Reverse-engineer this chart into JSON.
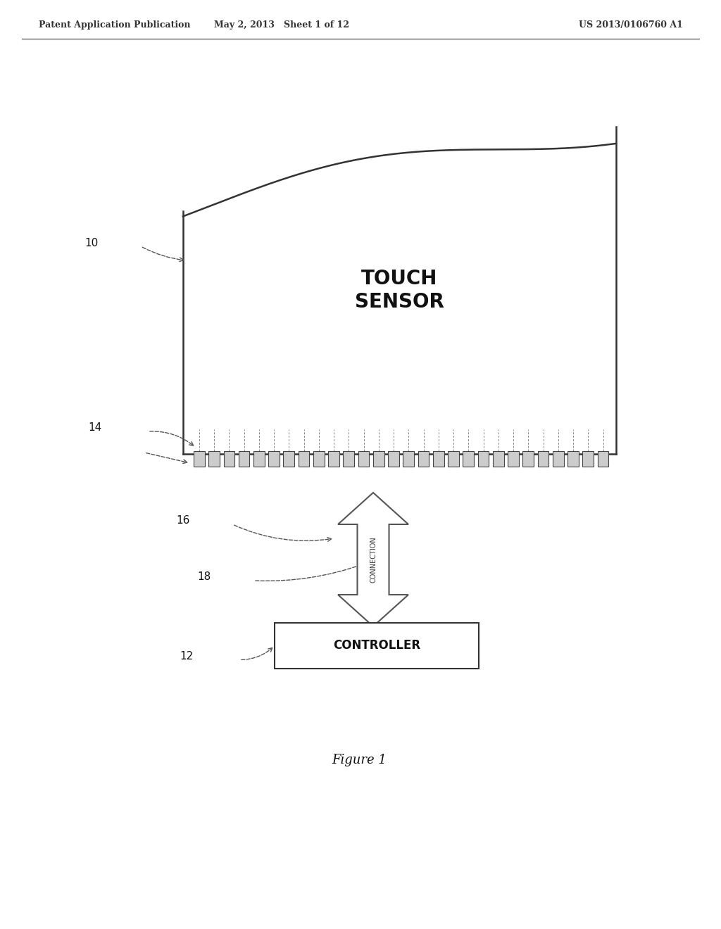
{
  "header_left": "Patent Application Publication",
  "header_mid": "May 2, 2013   Sheet 1 of 12",
  "header_right": "US 2013/0106760 A1",
  "touch_sensor_label": "TOUCH\nSENSOR",
  "controller_label": "CONTROLLER",
  "connection_label": "CONNECTION",
  "figure_label": "Figure 1",
  "ref_10": "10",
  "ref_14": "14",
  "ref_16": "16",
  "ref_18": "18",
  "ref_12": "12",
  "bg_color": "#ffffff",
  "line_color": "#333333",
  "box_color": "#555555",
  "dashed_color": "#555555"
}
